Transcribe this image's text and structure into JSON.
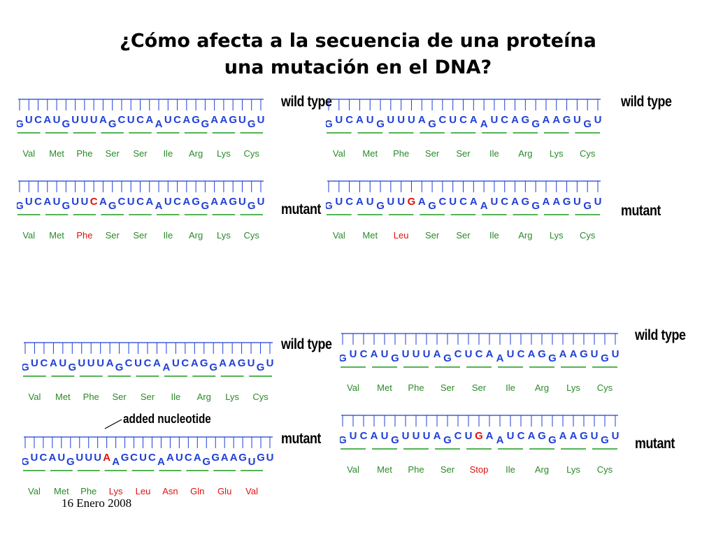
{
  "title": {
    "line1": "¿Cómo afecta a la secuencia de una proteína",
    "line2": "una mutación en el DNA?"
  },
  "colors": {
    "nucleotide": "#1f3fd6",
    "codon_underline": "#1c9a1c",
    "amino_acid": "#2a8a2a",
    "mutation": "#e01010",
    "tick": "#1f3fd6"
  },
  "panels": [
    {
      "id": "point-silent",
      "wild_type_label": "wild type",
      "mutant_label": "mutant",
      "wild_type": {
        "sequence": [
          "G",
          "U",
          "C",
          "A",
          "U",
          "G",
          "U",
          "U",
          "U",
          "A",
          "G",
          "C",
          "U",
          "C",
          "A",
          "A",
          "U",
          "C",
          "A",
          "G",
          "G",
          "A",
          "A",
          "G",
          "U",
          "G",
          "U"
        ],
        "amino_acids": [
          "Val",
          "Met",
          "Phe",
          "Ser",
          "Ser",
          "Ile",
          "Arg",
          "Lys",
          "Cys"
        ],
        "mutated_nt": [],
        "mutated_aa": []
      },
      "mutant": {
        "sequence": [
          "G",
          "U",
          "C",
          "A",
          "U",
          "G",
          "U",
          "U",
          "C",
          "A",
          "G",
          "C",
          "U",
          "C",
          "A",
          "A",
          "U",
          "C",
          "A",
          "G",
          "G",
          "A",
          "A",
          "G",
          "U",
          "G",
          "U"
        ],
        "amino_acids": [
          "Val",
          "Met",
          "Phe",
          "Ser",
          "Ser",
          "Ile",
          "Arg",
          "Lys",
          "Cys"
        ],
        "mutated_nt": [
          8
        ],
        "mutated_aa": [
          2
        ]
      }
    },
    {
      "id": "point-missense",
      "wild_type_label": "wild type",
      "mutant_label": "mutant",
      "wild_type": {
        "sequence": [
          "G",
          "U",
          "C",
          "A",
          "U",
          "G",
          "U",
          "U",
          "U",
          "A",
          "G",
          "C",
          "U",
          "C",
          "A",
          "A",
          "U",
          "C",
          "A",
          "G",
          "G",
          "A",
          "A",
          "G",
          "U",
          "G",
          "U"
        ],
        "amino_acids": [
          "Val",
          "Met",
          "Phe",
          "Ser",
          "Ser",
          "Ile",
          "Arg",
          "Lys",
          "Cys"
        ],
        "mutated_nt": [],
        "mutated_aa": []
      },
      "mutant": {
        "sequence": [
          "G",
          "U",
          "C",
          "A",
          "U",
          "G",
          "U",
          "U",
          "G",
          "A",
          "G",
          "C",
          "U",
          "C",
          "A",
          "A",
          "U",
          "C",
          "A",
          "G",
          "G",
          "A",
          "A",
          "G",
          "U",
          "G",
          "U"
        ],
        "amino_acids": [
          "Val",
          "Met",
          "Leu",
          "Ser",
          "Ser",
          "Ile",
          "Arg",
          "Lys",
          "Cys"
        ],
        "mutated_nt": [
          8
        ],
        "mutated_aa": [
          2
        ]
      }
    },
    {
      "id": "frameshift",
      "wild_type_label": "wild type",
      "mutant_label": "mutant",
      "annotation": "added nucleotide",
      "wild_type": {
        "sequence": [
          "G",
          "U",
          "C",
          "A",
          "U",
          "G",
          "U",
          "U",
          "U",
          "A",
          "G",
          "C",
          "U",
          "C",
          "A",
          "A",
          "U",
          "C",
          "A",
          "G",
          "G",
          "A",
          "A",
          "G",
          "U",
          "G",
          "U"
        ],
        "amino_acids": [
          "Val",
          "Met",
          "Phe",
          "Ser",
          "Ser",
          "Ile",
          "Arg",
          "Lys",
          "Cys"
        ],
        "mutated_nt": [],
        "mutated_aa": []
      },
      "mutant": {
        "sequence": [
          "G",
          "U",
          "C",
          "A",
          "U",
          "G",
          "U",
          "U",
          "U",
          "A",
          "A",
          "G",
          "C",
          "U",
          "C",
          "A",
          "A",
          "U",
          "C",
          "A",
          "G",
          "G",
          "A",
          "A",
          "G",
          "U",
          "G",
          "U"
        ],
        "amino_acids": [
          "Val",
          "Met",
          "Phe",
          "Lys",
          "Leu",
          "Asn",
          "Gln",
          "Glu",
          "Val"
        ],
        "mutated_nt": [
          9
        ],
        "mutated_aa": [
          3,
          4,
          5,
          6,
          7,
          8
        ]
      }
    },
    {
      "id": "nonsense",
      "wild_type_label": "wild type",
      "mutant_label": "mutant",
      "wild_type": {
        "sequence": [
          "G",
          "U",
          "C",
          "A",
          "U",
          "G",
          "U",
          "U",
          "U",
          "A",
          "G",
          "C",
          "U",
          "C",
          "A",
          "A",
          "U",
          "C",
          "A",
          "G",
          "G",
          "A",
          "A",
          "G",
          "U",
          "G",
          "U"
        ],
        "amino_acids": [
          "Val",
          "Met",
          "Phe",
          "Ser",
          "Ser",
          "Ile",
          "Arg",
          "Lys",
          "Cys"
        ],
        "mutated_nt": [],
        "mutated_aa": []
      },
      "mutant": {
        "sequence": [
          "G",
          "U",
          "C",
          "A",
          "U",
          "G",
          "U",
          "U",
          "U",
          "A",
          "G",
          "C",
          "U",
          "G",
          "A",
          "A",
          "U",
          "C",
          "A",
          "G",
          "G",
          "A",
          "A",
          "G",
          "U",
          "G",
          "U"
        ],
        "amino_acids": [
          "Val",
          "Met",
          "Phe",
          "Ser",
          "Stop",
          "Ile",
          "Arg",
          "Lys",
          "Cys"
        ],
        "mutated_nt": [
          13
        ],
        "mutated_aa": [
          4
        ]
      }
    }
  ],
  "footer": {
    "date": "16 Enero 2008"
  }
}
